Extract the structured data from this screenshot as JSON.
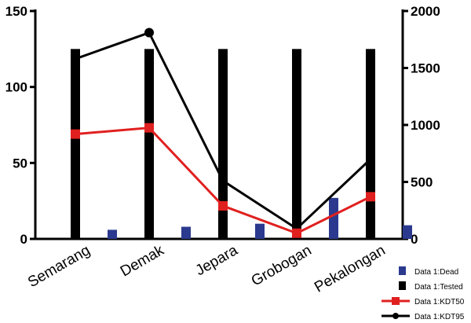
{
  "chart_data": {
    "type": "bar",
    "title": "",
    "xlabel": "",
    "ylabel": "",
    "y2label": "",
    "categories": [
      "Semarang",
      "Demak",
      "Jepara",
      "Grobogan",
      "Pekalongan"
    ],
    "ylim": [
      0,
      150
    ],
    "y2lim": [
      0,
      2000
    ],
    "yticks": [
      0,
      50,
      100,
      150
    ],
    "y2ticks": [
      0,
      500,
      1000,
      1500,
      2000
    ],
    "grid": false,
    "legend_position": "bottom-right",
    "series": [
      {
        "name": "Data 1:Dead",
        "kind": "bar",
        "axis": "left",
        "color": "#2b3a8f",
        "values": [
          6,
          8,
          10,
          27,
          9
        ]
      },
      {
        "name": "Data 1:Tested",
        "kind": "bar",
        "axis": "left",
        "color": "#000000",
        "values": [
          125,
          125,
          125,
          125,
          125
        ]
      },
      {
        "name": "Data 1:KDT50",
        "kind": "line",
        "axis": "right",
        "color": "#e0201f",
        "marker": "square",
        "values": [
          920,
          975,
          290,
          50,
          370
        ]
      },
      {
        "name": "Data 1:KDT95",
        "kind": "line",
        "axis": "right",
        "color": "#000000",
        "marker": "circle",
        "values": [
          1580,
          1810,
          510,
          90,
          700
        ]
      }
    ]
  }
}
